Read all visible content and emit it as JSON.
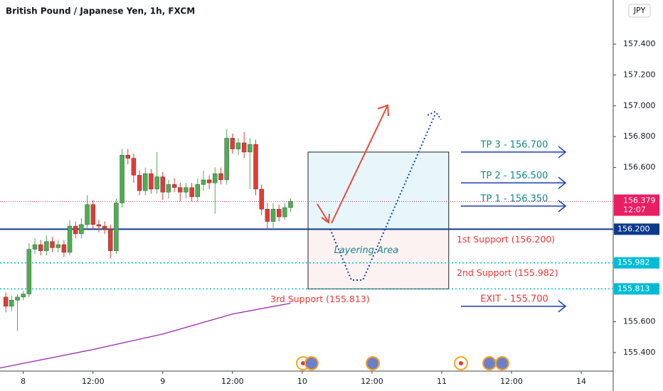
{
  "chart_data": {
    "type": "candlestick",
    "title": "British Pound / Japanese Yen, 1h, FXCM",
    "currency": "JPY",
    "x": [
      -3,
      -2,
      -1,
      0,
      1,
      2,
      3,
      4,
      5,
      6,
      7,
      8,
      9,
      10,
      11,
      12,
      13,
      14,
      15,
      16,
      17,
      18,
      19,
      20,
      21,
      22,
      23,
      24,
      25,
      26,
      27,
      28,
      29,
      30,
      31,
      32,
      33,
      34,
      35,
      36,
      37,
      38,
      39,
      40,
      41,
      42,
      43,
      44,
      45,
      46
    ],
    "open": [
      155.76,
      155.7,
      155.74,
      155.76,
      155.78,
      156.07,
      156.1,
      156.06,
      156.12,
      156.08,
      156.1,
      156.05,
      156.22,
      156.17,
      156.23,
      156.36,
      156.23,
      156.22,
      156.2,
      156.06,
      156.37,
      156.68,
      156.66,
      156.55,
      156.45,
      156.56,
      156.46,
      156.54,
      156.44,
      156.49,
      156.47,
      156.44,
      156.47,
      156.41,
      156.49,
      156.52,
      156.5,
      156.56,
      156.52,
      156.79,
      156.72,
      156.76,
      156.7,
      156.75,
      156.46,
      156.33,
      156.25,
      156.33,
      156.28,
      156.34
    ],
    "high": [
      155.79,
      155.77,
      155.78,
      155.8,
      156.11,
      156.14,
      156.13,
      156.16,
      156.15,
      156.13,
      156.13,
      156.26,
      156.25,
      156.27,
      156.42,
      156.39,
      156.26,
      156.25,
      156.23,
      156.4,
      156.72,
      156.72,
      156.69,
      156.58,
      156.6,
      156.59,
      156.7,
      156.57,
      156.52,
      156.53,
      156.5,
      156.5,
      156.5,
      156.53,
      156.58,
      156.55,
      156.6,
      156.6,
      156.85,
      156.82,
      156.79,
      156.83,
      156.79,
      156.78,
      156.49,
      156.37,
      156.37,
      156.36,
      156.37,
      156.4
    ],
    "low": [
      155.66,
      155.67,
      155.54,
      155.74,
      155.76,
      156.04,
      156.03,
      156.03,
      156.05,
      156.05,
      156.02,
      156.03,
      156.14,
      156.14,
      156.2,
      156.2,
      156.18,
      156.17,
      156.01,
      156.04,
      156.34,
      156.62,
      156.5,
      156.42,
      156.42,
      156.43,
      156.43,
      156.39,
      156.4,
      156.44,
      156.38,
      156.4,
      156.38,
      156.38,
      156.45,
      156.46,
      156.3,
      156.49,
      156.49,
      156.69,
      156.68,
      156.66,
      156.46,
      156.42,
      156.29,
      156.2,
      156.2,
      156.25,
      156.26,
      156.31
    ],
    "close": [
      155.7,
      155.74,
      155.76,
      155.78,
      156.07,
      156.1,
      156.06,
      156.12,
      156.08,
      156.1,
      156.05,
      156.22,
      156.17,
      156.23,
      156.36,
      156.23,
      156.22,
      156.2,
      156.06,
      156.37,
      156.68,
      156.66,
      156.55,
      156.45,
      156.56,
      156.46,
      156.54,
      156.44,
      156.49,
      156.47,
      156.44,
      156.47,
      156.41,
      156.49,
      156.52,
      156.5,
      156.56,
      156.52,
      156.79,
      156.72,
      156.76,
      156.7,
      156.75,
      156.46,
      156.33,
      156.25,
      156.33,
      156.28,
      156.34,
      156.38
    ],
    "up_color": "#4caf50",
    "down_color": "#e53935",
    "moving_average": {
      "color": "#9c27b0",
      "x": [
        -4,
        0,
        12,
        24,
        36,
        46
      ],
      "values": [
        155.3,
        155.33,
        155.42,
        155.52,
        155.65,
        155.72
      ]
    },
    "xlim": [
      -4,
      101.5
    ],
    "xticks": [
      {
        "value": 0,
        "label": "8"
      },
      {
        "value": 12,
        "label": "12:00"
      },
      {
        "value": 24,
        "label": "9"
      },
      {
        "value": 36,
        "label": "12:00"
      },
      {
        "value": 48,
        "label": "10"
      },
      {
        "value": 60,
        "label": "12:00"
      },
      {
        "value": 72,
        "label": "11"
      },
      {
        "value": 84,
        "label": "12:00"
      },
      {
        "value": 96,
        "label": "14"
      }
    ],
    "ylim": [
      155.28,
      157.686
    ],
    "yticks": [
      {
        "value": 157.4,
        "label": "157.400"
      },
      {
        "value": 157.2,
        "label": "157.200"
      },
      {
        "value": 157.0,
        "label": "157.000"
      },
      {
        "value": 156.8,
        "label": "156.800"
      },
      {
        "value": 156.6,
        "label": "156.600"
      },
      {
        "value": 155.6,
        "label": "155.600"
      },
      {
        "value": 155.4,
        "label": "155.400"
      }
    ],
    "levels": [
      {
        "value": 156.2,
        "label": "156.200",
        "color": "#0d3a8c",
        "style": "solid"
      },
      {
        "value": 155.982,
        "label": "155.982",
        "color": "#00bcd4",
        "style": "dotted"
      },
      {
        "value": 155.813,
        "label": "155.813",
        "color": "#00bcd4",
        "style": "dotted"
      }
    ],
    "last_price": {
      "value": 156.379,
      "label": "156.379",
      "countdown": "12:07",
      "color": "#e91e63"
    },
    "zones": [
      {
        "x": [
          49,
          73.2
        ],
        "from": 156.2,
        "to": 156.7,
        "fill": "#e6f6fb",
        "label": null
      },
      {
        "x": [
          49,
          73.2
        ],
        "from": 155.813,
        "to": 156.2,
        "fill": "#fdf2f2",
        "label": "Layering Area"
      }
    ],
    "targets": [
      {
        "label": "TP 3 - 156.700",
        "value": 156.7,
        "color": "#138a8a"
      },
      {
        "label": "TP 2 - 156.500",
        "value": 156.5,
        "color": "#138a8a"
      },
      {
        "label": "TP 1 - 156.350",
        "value": 156.35,
        "color": "#138a8a"
      },
      {
        "label": "EXIT - 155.700",
        "value": 155.7,
        "color": "#e53935"
      }
    ],
    "supports": [
      {
        "label": "1st Support (156.200)",
        "value": 156.2
      },
      {
        "label": "2nd Support (155.982)",
        "value": 155.982
      },
      {
        "label": "3rd Support (155.813)",
        "value": 155.813
      }
    ]
  }
}
